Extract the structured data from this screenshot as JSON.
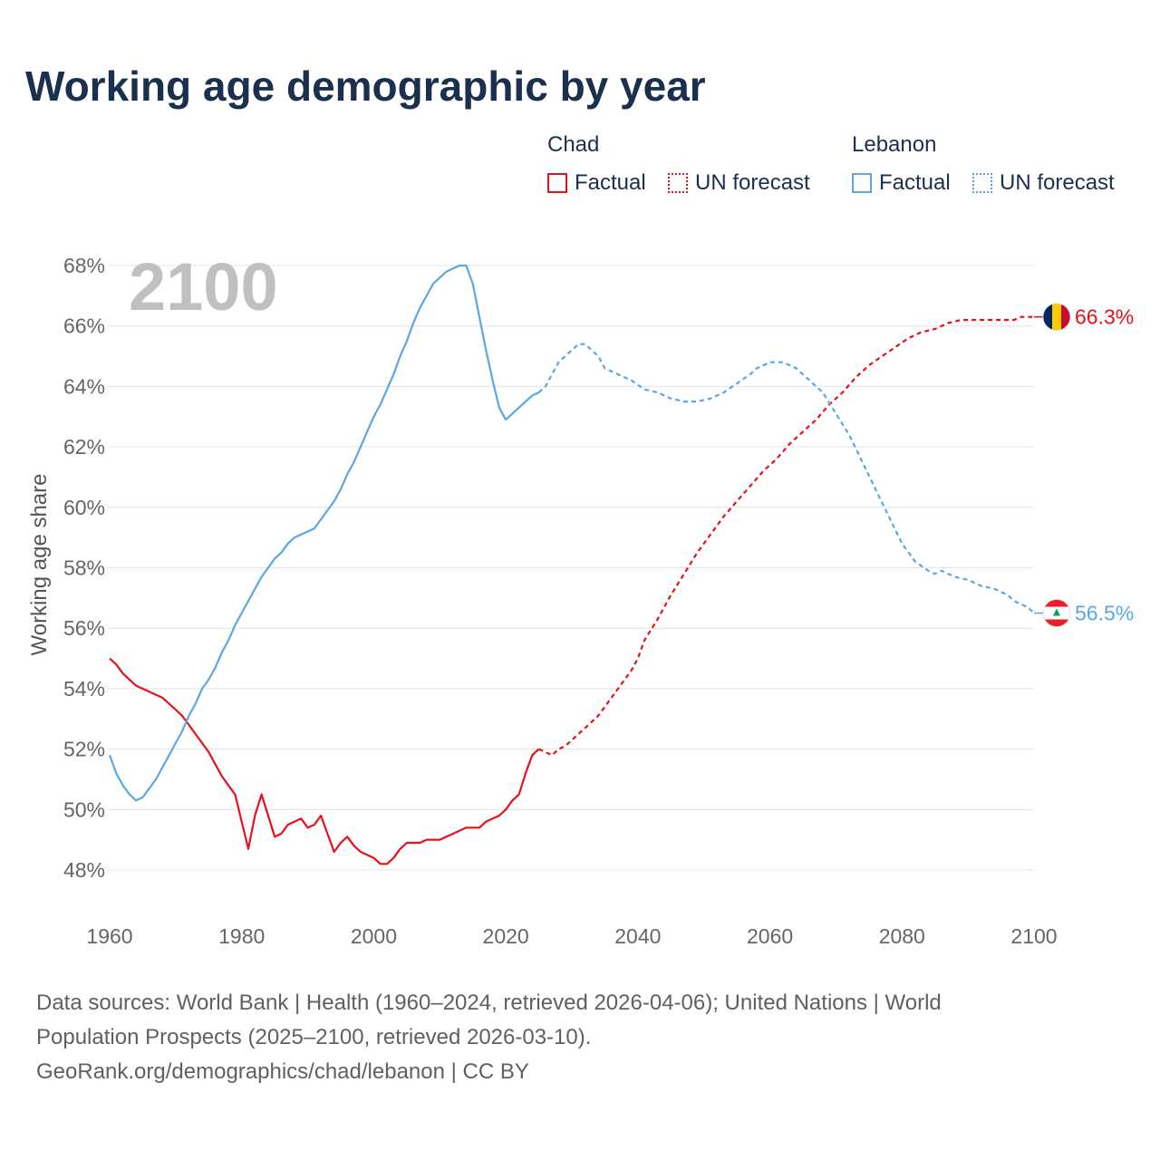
{
  "title": "Working age demographic by year",
  "legend": {
    "groups": [
      {
        "name": "Chad",
        "factual_label": "Factual",
        "forecast_label": "UN forecast",
        "color": "#e8101a"
      },
      {
        "name": "Lebanon",
        "factual_label": "Factual",
        "forecast_label": "UN forecast",
        "color": "#5aa7e6"
      }
    ]
  },
  "source": {
    "line1": "Data sources: World Bank | Health (1960–2024, retrieved 2026-04-06); United Nations | World",
    "line2": "Population Prospects (2025–2100, retrieved 2026-03-10).",
    "line3": "GeoRank.org/demographics/chad/lebanon | CC BY"
  },
  "chart_data": {
    "type": "line",
    "year_label": "2100",
    "ylabel": "Working age share",
    "xlim": [
      1960,
      2100
    ],
    "ylim": [
      47,
      68.5
    ],
    "xticks": [
      1960,
      1980,
      2000,
      2020,
      2040,
      2060,
      2080,
      2100
    ],
    "xtick_labels": [
      "1960",
      "1980",
      "2000",
      "2020",
      "2040",
      "2060",
      "2080",
      "2100"
    ],
    "yticks": [
      48,
      50,
      52,
      54,
      56,
      58,
      60,
      62,
      64,
      66,
      68
    ],
    "ytick_labels": [
      "48%",
      "50%",
      "52%",
      "54%",
      "56%",
      "58%",
      "60%",
      "62%",
      "64%",
      "66%",
      "68%"
    ],
    "series": [
      {
        "name": "Chad",
        "color": "#e8101a",
        "end_label": "66.3%",
        "factual": [
          [
            1960,
            55.0
          ],
          [
            1961,
            54.8
          ],
          [
            1962,
            54.5
          ],
          [
            1963,
            54.3
          ],
          [
            1964,
            54.1
          ],
          [
            1965,
            54.0
          ],
          [
            1966,
            53.9
          ],
          [
            1967,
            53.8
          ],
          [
            1968,
            53.7
          ],
          [
            1969,
            53.5
          ],
          [
            1970,
            53.3
          ],
          [
            1971,
            53.1
          ],
          [
            1972,
            52.8
          ],
          [
            1973,
            52.5
          ],
          [
            1974,
            52.2
          ],
          [
            1975,
            51.9
          ],
          [
            1976,
            51.5
          ],
          [
            1977,
            51.1
          ],
          [
            1978,
            50.8
          ],
          [
            1979,
            50.5
          ],
          [
            1980,
            49.6
          ],
          [
            1981,
            48.7
          ],
          [
            1982,
            49.8
          ],
          [
            1983,
            50.5
          ],
          [
            1984,
            49.8
          ],
          [
            1985,
            49.1
          ],
          [
            1986,
            49.2
          ],
          [
            1987,
            49.5
          ],
          [
            1988,
            49.6
          ],
          [
            1989,
            49.7
          ],
          [
            1990,
            49.4
          ],
          [
            1991,
            49.5
          ],
          [
            1992,
            49.8
          ],
          [
            1993,
            49.2
          ],
          [
            1994,
            48.6
          ],
          [
            1995,
            48.9
          ],
          [
            1996,
            49.1
          ],
          [
            1997,
            48.8
          ],
          [
            1998,
            48.6
          ],
          [
            1999,
            48.5
          ],
          [
            2000,
            48.4
          ],
          [
            2001,
            48.2
          ],
          [
            2002,
            48.2
          ],
          [
            2003,
            48.4
          ],
          [
            2004,
            48.7
          ],
          [
            2005,
            48.9
          ],
          [
            2006,
            48.9
          ],
          [
            2007,
            48.9
          ],
          [
            2008,
            49.0
          ],
          [
            2009,
            49.0
          ],
          [
            2010,
            49.0
          ],
          [
            2011,
            49.1
          ],
          [
            2012,
            49.2
          ],
          [
            2013,
            49.3
          ],
          [
            2014,
            49.4
          ],
          [
            2015,
            49.4
          ],
          [
            2016,
            49.4
          ],
          [
            2017,
            49.6
          ],
          [
            2018,
            49.7
          ],
          [
            2019,
            49.8
          ],
          [
            2020,
            50.0
          ],
          [
            2021,
            50.3
          ],
          [
            2022,
            50.5
          ],
          [
            2023,
            51.2
          ],
          [
            2024,
            51.8
          ],
          [
            2025,
            52.0
          ]
        ],
        "forecast": [
          [
            2025,
            52.0
          ],
          [
            2026,
            51.9
          ],
          [
            2027,
            51.8
          ],
          [
            2028,
            52.0
          ],
          [
            2029,
            52.1
          ],
          [
            2030,
            52.3
          ],
          [
            2032,
            52.7
          ],
          [
            2034,
            53.1
          ],
          [
            2036,
            53.7
          ],
          [
            2038,
            54.3
          ],
          [
            2039,
            54.6
          ],
          [
            2040,
            55.0
          ],
          [
            2041,
            55.6
          ],
          [
            2043,
            56.3
          ],
          [
            2045,
            57.1
          ],
          [
            2047,
            57.8
          ],
          [
            2049,
            58.5
          ],
          [
            2051,
            59.1
          ],
          [
            2053,
            59.7
          ],
          [
            2055,
            60.2
          ],
          [
            2057,
            60.7
          ],
          [
            2059,
            61.2
          ],
          [
            2061,
            61.6
          ],
          [
            2063,
            62.1
          ],
          [
            2065,
            62.5
          ],
          [
            2067,
            62.9
          ],
          [
            2069,
            63.4
          ],
          [
            2071,
            63.8
          ],
          [
            2073,
            64.3
          ],
          [
            2075,
            64.7
          ],
          [
            2077,
            65.0
          ],
          [
            2079,
            65.3
          ],
          [
            2081,
            65.6
          ],
          [
            2083,
            65.8
          ],
          [
            2085,
            65.9
          ],
          [
            2087,
            66.1
          ],
          [
            2089,
            66.2
          ],
          [
            2091,
            66.2
          ],
          [
            2093,
            66.2
          ],
          [
            2095,
            66.2
          ],
          [
            2097,
            66.2
          ],
          [
            2098,
            66.3
          ],
          [
            2100,
            66.3
          ]
        ]
      },
      {
        "name": "Lebanon",
        "color": "#5aa7e6",
        "end_label": "56.5%",
        "factual": [
          [
            1960,
            51.8
          ],
          [
            1961,
            51.2
          ],
          [
            1962,
            50.8
          ],
          [
            1963,
            50.5
          ],
          [
            1964,
            50.3
          ],
          [
            1965,
            50.4
          ],
          [
            1966,
            50.7
          ],
          [
            1967,
            51.0
          ],
          [
            1968,
            51.4
          ],
          [
            1969,
            51.8
          ],
          [
            1970,
            52.2
          ],
          [
            1971,
            52.6
          ],
          [
            1972,
            53.1
          ],
          [
            1973,
            53.5
          ],
          [
            1974,
            54.0
          ],
          [
            1975,
            54.3
          ],
          [
            1976,
            54.7
          ],
          [
            1977,
            55.2
          ],
          [
            1978,
            55.6
          ],
          [
            1979,
            56.1
          ],
          [
            1980,
            56.5
          ],
          [
            1981,
            56.9
          ],
          [
            1982,
            57.3
          ],
          [
            1983,
            57.7
          ],
          [
            1984,
            58.0
          ],
          [
            1985,
            58.3
          ],
          [
            1986,
            58.5
          ],
          [
            1987,
            58.8
          ],
          [
            1988,
            59.0
          ],
          [
            1989,
            59.1
          ],
          [
            1990,
            59.2
          ],
          [
            1991,
            59.3
          ],
          [
            1992,
            59.6
          ],
          [
            1993,
            59.9
          ],
          [
            1994,
            60.2
          ],
          [
            1995,
            60.6
          ],
          [
            1996,
            61.1
          ],
          [
            1997,
            61.5
          ],
          [
            1998,
            62.0
          ],
          [
            1999,
            62.5
          ],
          [
            2000,
            63.0
          ],
          [
            2001,
            63.4
          ],
          [
            2002,
            63.9
          ],
          [
            2003,
            64.4
          ],
          [
            2004,
            65.0
          ],
          [
            2005,
            65.5
          ],
          [
            2006,
            66.1
          ],
          [
            2007,
            66.6
          ],
          [
            2008,
            67.0
          ],
          [
            2009,
            67.4
          ],
          [
            2010,
            67.6
          ],
          [
            2011,
            67.8
          ],
          [
            2012,
            67.9
          ],
          [
            2013,
            68.0
          ],
          [
            2014,
            68.0
          ],
          [
            2015,
            67.4
          ],
          [
            2016,
            66.3
          ],
          [
            2017,
            65.2
          ],
          [
            2018,
            64.2
          ],
          [
            2019,
            63.3
          ],
          [
            2020,
            62.9
          ],
          [
            2021,
            63.1
          ],
          [
            2022,
            63.3
          ],
          [
            2023,
            63.5
          ],
          [
            2024,
            63.7
          ],
          [
            2025,
            63.8
          ]
        ],
        "forecast": [
          [
            2025,
            63.8
          ],
          [
            2026,
            64.0
          ],
          [
            2027,
            64.4
          ],
          [
            2028,
            64.8
          ],
          [
            2029,
            65.0
          ],
          [
            2030,
            65.2
          ],
          [
            2031,
            65.4
          ],
          [
            2032,
            65.4
          ],
          [
            2033,
            65.2
          ],
          [
            2034,
            65.0
          ],
          [
            2035,
            64.6
          ],
          [
            2037,
            64.4
          ],
          [
            2039,
            64.2
          ],
          [
            2041,
            63.9
          ],
          [
            2043,
            63.8
          ],
          [
            2045,
            63.6
          ],
          [
            2047,
            63.5
          ],
          [
            2049,
            63.5
          ],
          [
            2051,
            63.6
          ],
          [
            2053,
            63.8
          ],
          [
            2055,
            64.1
          ],
          [
            2057,
            64.4
          ],
          [
            2058,
            64.6
          ],
          [
            2060,
            64.8
          ],
          [
            2062,
            64.8
          ],
          [
            2064,
            64.6
          ],
          [
            2066,
            64.2
          ],
          [
            2068,
            63.8
          ],
          [
            2070,
            63.1
          ],
          [
            2072,
            62.4
          ],
          [
            2074,
            61.5
          ],
          [
            2076,
            60.6
          ],
          [
            2078,
            59.7
          ],
          [
            2080,
            58.8
          ],
          [
            2082,
            58.2
          ],
          [
            2084,
            57.9
          ],
          [
            2085,
            57.8
          ],
          [
            2086,
            57.9
          ],
          [
            2088,
            57.7
          ],
          [
            2090,
            57.6
          ],
          [
            2092,
            57.4
          ],
          [
            2094,
            57.3
          ],
          [
            2096,
            57.1
          ],
          [
            2097,
            56.9
          ],
          [
            2099,
            56.7
          ],
          [
            2100,
            56.5
          ]
        ]
      }
    ]
  }
}
